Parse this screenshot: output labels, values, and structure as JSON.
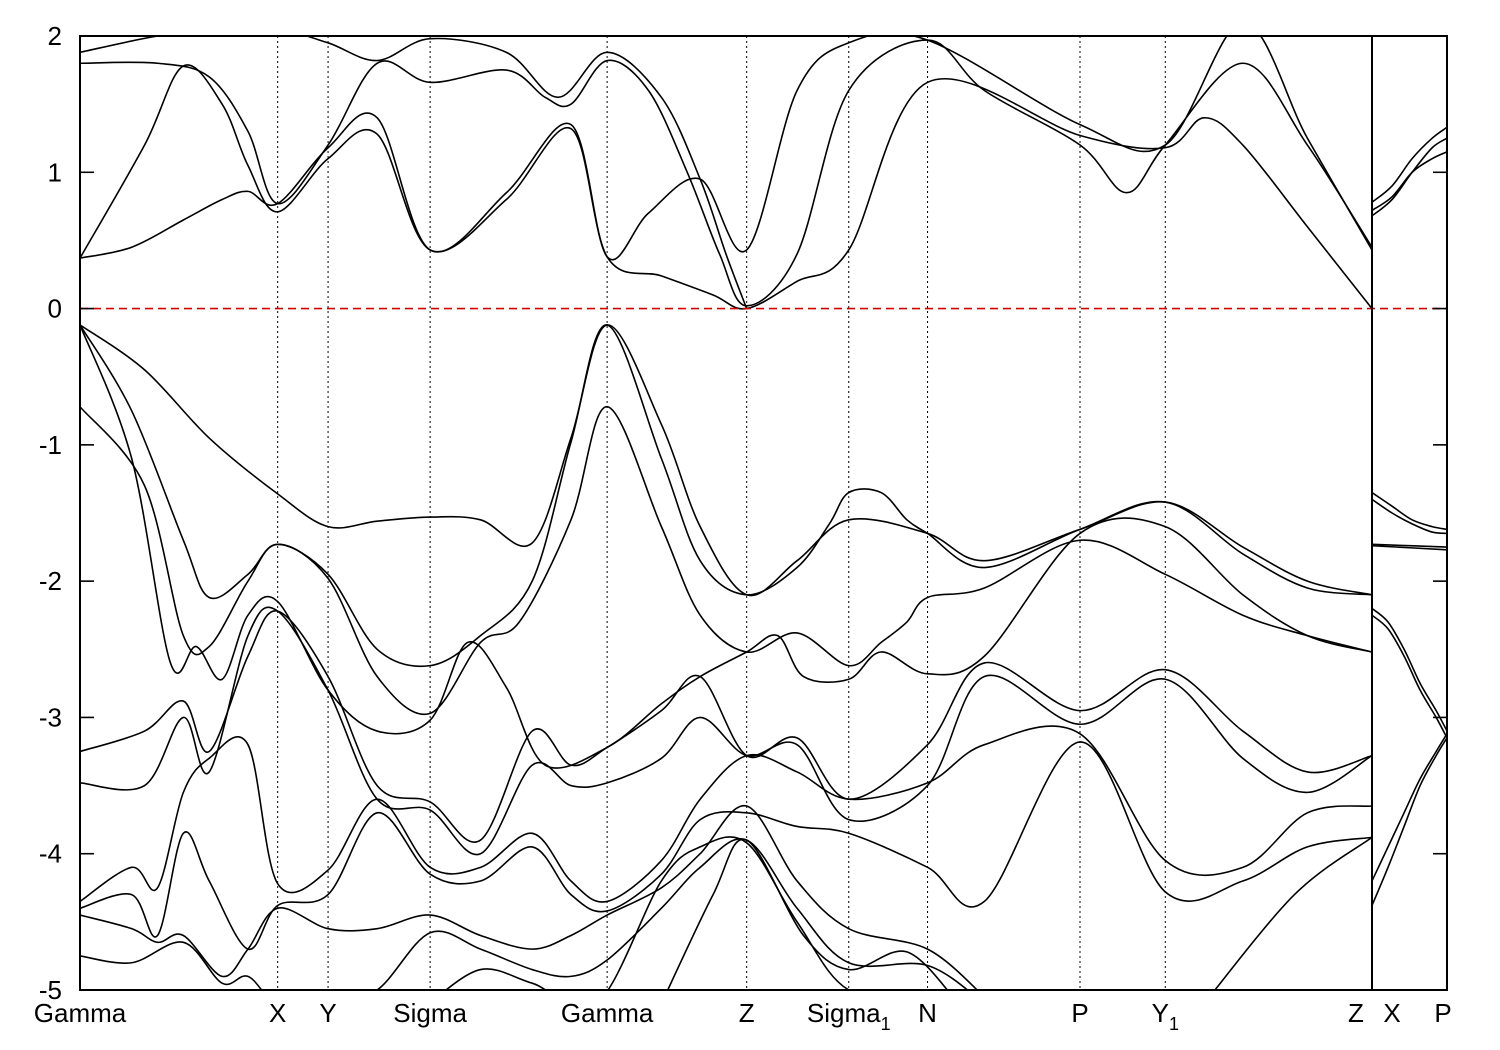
{
  "chart_data": {
    "type": "line",
    "title": "",
    "xlabel": "",
    "ylabel": "",
    "ylim": [
      -5,
      2
    ],
    "yticks": [
      2,
      1,
      0,
      -1,
      -2,
      -3,
      -4,
      -5
    ],
    "fermi_level": 0,
    "fermi_color": "#d40000",
    "line_color": "#000000",
    "grid": false,
    "legend": "none",
    "path_segments": [
      {
        "from": 0.0,
        "to": 1.0
      },
      {
        "from": 1.0,
        "to": 1.187
      }
    ],
    "kpoints": [
      {
        "label": "Gamma",
        "sub": "",
        "x": 0.0
      },
      {
        "label": "X",
        "sub": "",
        "x": 0.153
      },
      {
        "label": "Y",
        "sub": "",
        "x": 0.192
      },
      {
        "label": "Sigma",
        "sub": "",
        "x": 0.271
      },
      {
        "label": "Gamma",
        "sub": "",
        "x": 0.408
      },
      {
        "label": "Z",
        "sub": "",
        "x": 0.516
      },
      {
        "label": "Sigma",
        "sub": "1",
        "x": 0.595
      },
      {
        "label": "N",
        "sub": "",
        "x": 0.656
      },
      {
        "label": "P",
        "sub": "",
        "x": 0.774
      },
      {
        "label": "Y",
        "sub": "1",
        "x": 0.84
      },
      {
        "label": "Z",
        "sub": "",
        "x": 1.0
      },
      {
        "label": "X",
        "sub": "",
        "x": 1.0
      },
      {
        "label": "P",
        "sub": "",
        "x": 1.187
      }
    ],
    "kpoints_note_hidden": "",
    "series": [
      {
        "segment": 0,
        "x": [
          0.0,
          0.04,
          0.08,
          0.11,
          0.13,
          0.153,
          0.192,
          0.23,
          0.271,
          0.33,
          0.38,
          0.408,
          0.44,
          0.48,
          0.516,
          0.555,
          0.595,
          0.656,
          0.774,
          0.84,
          0.9,
          0.95,
          1.0
        ],
        "y": [
          0.37,
          0.45,
          0.65,
          0.8,
          0.86,
          0.77,
          1.18,
          1.4,
          0.43,
          0.85,
          1.35,
          0.38,
          0.7,
          0.95,
          0.43,
          1.6,
          1.95,
          1.97,
          1.35,
          1.2,
          2.1,
          1.25,
          0.43
        ]
      },
      {
        "segment": 0,
        "x": [
          0.0,
          0.05,
          0.08,
          0.11,
          0.13,
          0.153,
          0.192,
          0.23,
          0.271,
          0.33,
          0.38,
          0.408,
          0.45,
          0.49,
          0.516,
          0.555,
          0.595,
          0.656,
          0.774,
          0.84,
          0.87,
          0.9,
          0.95,
          1.0
        ],
        "y": [
          0.37,
          1.2,
          1.78,
          1.5,
          1.05,
          0.71,
          1.1,
          1.28,
          0.43,
          0.8,
          1.32,
          0.38,
          0.24,
          0.1,
          0.0,
          0.2,
          0.43,
          1.66,
          1.27,
          1.18,
          1.4,
          1.2,
          0.6,
          0.0
        ]
      },
      {
        "segment": 0,
        "x": [
          0.0,
          0.06,
          0.1,
          0.13,
          0.153,
          0.192,
          0.23,
          0.271,
          0.33,
          0.36,
          0.38,
          0.408,
          0.44,
          0.47,
          0.495,
          0.516,
          0.555,
          0.595,
          0.656,
          0.7,
          0.774,
          0.81,
          0.84,
          0.9,
          0.95,
          1.0
        ],
        "y": [
          1.8,
          1.8,
          1.7,
          1.3,
          0.77,
          1.2,
          1.8,
          1.66,
          1.75,
          1.55,
          1.5,
          1.82,
          1.6,
          1.0,
          0.4,
          0.02,
          0.4,
          1.6,
          1.97,
          1.6,
          1.2,
          0.85,
          1.2,
          1.8,
          1.2,
          0.45
        ]
      },
      {
        "segment": 0,
        "x": [
          0.0,
          0.06,
          0.11,
          0.153,
          0.192,
          0.23,
          0.271,
          0.33,
          0.37,
          0.408,
          0.45,
          0.48,
          0.5,
          0.516
        ],
        "y": [
          1.88,
          2.0,
          2.05,
          2.05,
          1.95,
          1.82,
          1.98,
          1.88,
          1.55,
          1.88,
          1.55,
          0.95,
          0.4,
          0.0
        ]
      },
      {
        "segment": 0,
        "x": [
          0.0,
          0.05,
          0.1,
          0.153,
          0.192,
          0.23,
          0.271,
          0.31,
          0.35,
          0.38,
          0.408,
          0.45,
          0.48,
          0.516,
          0.555,
          0.595,
          0.656,
          0.7,
          0.774,
          0.84,
          0.9,
          0.95,
          1.0
        ],
        "y": [
          -0.12,
          -0.45,
          -0.95,
          -1.36,
          -1.6,
          -1.56,
          -1.53,
          -1.55,
          -1.72,
          -0.95,
          -0.12,
          -0.85,
          -1.6,
          -2.1,
          -1.85,
          -1.55,
          -1.65,
          -1.85,
          -1.62,
          -1.42,
          -1.75,
          -2.0,
          -2.1
        ]
      },
      {
        "segment": 0,
        "x": [
          0.0,
          0.04,
          0.08,
          0.1,
          0.13,
          0.153,
          0.192,
          0.23,
          0.271,
          0.31,
          0.35,
          0.38,
          0.408,
          0.45,
          0.48,
          0.516,
          0.555,
          0.58,
          0.595,
          0.62,
          0.64,
          0.656,
          0.7,
          0.774,
          0.84,
          0.9,
          0.95,
          1.0
        ],
        "y": [
          -0.12,
          -0.75,
          -1.7,
          -2.12,
          -1.95,
          -1.73,
          -1.95,
          -2.5,
          -2.62,
          -2.4,
          -2.0,
          -0.98,
          -0.12,
          -1.1,
          -1.85,
          -2.1,
          -1.9,
          -1.58,
          -1.35,
          -1.35,
          -1.55,
          -1.65,
          -1.9,
          -1.62,
          -1.42,
          -1.8,
          -2.05,
          -2.1
        ]
      },
      {
        "segment": 0,
        "x": [
          0.0,
          0.05,
          0.08,
          0.1,
          0.13,
          0.153,
          0.192,
          0.23,
          0.271,
          0.31,
          0.34,
          0.38,
          0.408,
          0.45,
          0.48,
          0.516,
          0.555,
          0.595,
          0.62,
          0.64,
          0.656,
          0.7,
          0.774,
          0.84,
          0.9,
          0.95,
          1.0
        ],
        "y": [
          -0.72,
          -1.3,
          -2.4,
          -2.48,
          -2.0,
          -1.73,
          -1.98,
          -2.7,
          -2.97,
          -2.45,
          -2.3,
          -1.55,
          -0.72,
          -1.6,
          -2.25,
          -2.52,
          -2.38,
          -2.62,
          -2.45,
          -2.3,
          -2.12,
          -2.05,
          -1.7,
          -1.95,
          -2.25,
          -2.4,
          -2.52
        ]
      },
      {
        "segment": 0,
        "x": [
          0.0,
          0.04,
          0.07,
          0.09,
          0.11,
          0.13,
          0.153,
          0.192,
          0.23,
          0.271,
          0.3,
          0.33,
          0.36,
          0.408,
          0.45,
          0.48,
          0.516,
          0.54,
          0.56,
          0.595,
          0.62,
          0.656,
          0.7,
          0.774,
          0.84,
          0.9,
          0.95,
          1.0
        ],
        "y": [
          -0.12,
          -1.1,
          -2.6,
          -2.48,
          -2.72,
          -2.25,
          -2.15,
          -2.8,
          -3.1,
          -3.02,
          -2.45,
          -2.78,
          -3.35,
          -3.22,
          -2.9,
          -2.7,
          -2.52,
          -2.4,
          -2.7,
          -2.72,
          -2.52,
          -2.68,
          -2.55,
          -1.65,
          -1.6,
          -2.1,
          -2.4,
          -2.52
        ]
      },
      {
        "segment": 0,
        "x": [
          0.0,
          0.05,
          0.08,
          0.1,
          0.13,
          0.153,
          0.192,
          0.23,
          0.271,
          0.31,
          0.35,
          0.38,
          0.408,
          0.45,
          0.48,
          0.516,
          0.555,
          0.595,
          0.656,
          0.7,
          0.774,
          0.84,
          0.9,
          0.95,
          1.0
        ],
        "y": [
          -3.25,
          -3.1,
          -2.88,
          -3.25,
          -2.55,
          -2.22,
          -2.7,
          -3.5,
          -3.62,
          -3.9,
          -3.1,
          -3.35,
          -3.22,
          -2.95,
          -2.7,
          -3.28,
          -3.15,
          -3.6,
          -3.2,
          -2.6,
          -2.95,
          -2.65,
          -3.1,
          -3.4,
          -3.28
        ]
      },
      {
        "segment": 0,
        "x": [
          0.0,
          0.05,
          0.08,
          0.1,
          0.13,
          0.153,
          0.192,
          0.23,
          0.271,
          0.31,
          0.35,
          0.38,
          0.408,
          0.45,
          0.48,
          0.516,
          0.555,
          0.595,
          0.656,
          0.7,
          0.774,
          0.84,
          0.9,
          0.95,
          1.0
        ],
        "y": [
          -3.48,
          -3.5,
          -3.0,
          -3.4,
          -2.4,
          -2.22,
          -2.8,
          -3.6,
          -3.68,
          -4.0,
          -3.35,
          -3.5,
          -3.48,
          -3.3,
          -3.0,
          -3.28,
          -3.2,
          -3.75,
          -3.5,
          -2.7,
          -3.05,
          -2.72,
          -3.3,
          -3.55,
          -3.28
        ]
      },
      {
        "segment": 0,
        "x": [
          0.0,
          0.04,
          0.06,
          0.08,
          0.1,
          0.13,
          0.153,
          0.192,
          0.23,
          0.271,
          0.31,
          0.35,
          0.38,
          0.408,
          0.45,
          0.48,
          0.516,
          0.555,
          0.595,
          0.656,
          0.7,
          0.774,
          0.84,
          0.9,
          0.95,
          1.0
        ],
        "y": [
          -4.35,
          -4.1,
          -4.25,
          -3.55,
          -3.3,
          -3.2,
          -4.22,
          -4.12,
          -3.6,
          -4.1,
          -4.1,
          -3.85,
          -4.2,
          -4.35,
          -4.05,
          -3.6,
          -3.28,
          -3.4,
          -3.6,
          -3.48,
          -3.2,
          -3.12,
          -4.05,
          -4.1,
          -3.7,
          -3.65
        ]
      },
      {
        "segment": 0,
        "x": [
          0.0,
          0.04,
          0.06,
          0.08,
          0.1,
          0.13,
          0.153,
          0.192,
          0.23,
          0.271,
          0.31,
          0.35,
          0.38,
          0.408,
          0.45,
          0.48,
          0.516,
          0.555,
          0.595,
          0.656,
          0.7,
          0.774,
          0.84,
          0.9,
          0.95,
          1.0
        ],
        "y": [
          -4.4,
          -4.3,
          -4.6,
          -3.85,
          -4.2,
          -4.7,
          -4.38,
          -4.3,
          -3.7,
          -4.15,
          -4.2,
          -3.95,
          -4.3,
          -4.42,
          -4.15,
          -3.75,
          -3.7,
          -3.8,
          -3.85,
          -4.1,
          -4.35,
          -3.18,
          -4.28,
          -4.2,
          -3.95,
          -3.88
        ]
      },
      {
        "segment": 0,
        "x": [
          0.0,
          0.04,
          0.06,
          0.08,
          0.11,
          0.13,
          0.153,
          0.192,
          0.23,
          0.271,
          0.31,
          0.35,
          0.38,
          0.408,
          0.45,
          0.48,
          0.516,
          0.555,
          0.595,
          0.656,
          0.7
        ],
        "y": [
          -4.45,
          -4.55,
          -4.65,
          -4.6,
          -4.9,
          -4.7,
          -4.4,
          -4.55,
          -4.55,
          -4.45,
          -4.6,
          -4.7,
          -4.6,
          -4.45,
          -4.25,
          -4.0,
          -3.65,
          -4.2,
          -4.55,
          -4.7,
          -5.05
        ]
      },
      {
        "segment": 0,
        "x": [
          0.0,
          0.04,
          0.08,
          0.11,
          0.13,
          0.153,
          0.192,
          0.23,
          0.271,
          0.31,
          0.35,
          0.38,
          0.408,
          0.45,
          0.48,
          0.516,
          0.555,
          0.595,
          0.656,
          0.7
        ],
        "y": [
          -4.75,
          -4.8,
          -4.65,
          -4.95,
          -4.9,
          -5.1,
          -5.1,
          -5.0,
          -4.58,
          -4.7,
          -4.85,
          -4.9,
          -4.78,
          -4.4,
          -4.1,
          -3.9,
          -4.4,
          -4.8,
          -4.82,
          -5.1
        ]
      },
      {
        "segment": 0,
        "x": [
          0.27,
          0.31,
          0.35,
          0.4,
          0.45,
          0.48,
          0.516,
          0.555,
          0.595,
          0.656
        ],
        "y": [
          -5.1,
          -4.85,
          -4.95,
          -5.1,
          -4.2,
          -3.95,
          -3.92,
          -4.5,
          -5.0,
          -5.05
        ]
      },
      {
        "segment": 0,
        "x": [
          0.45,
          0.49,
          0.516,
          0.56,
          0.595,
          0.64,
          0.68
        ],
        "y": [
          -5.1,
          -4.3,
          -3.9,
          -4.6,
          -4.85,
          -4.72,
          -5.1
        ]
      },
      {
        "segment": 0,
        "x": [
          0.87,
          0.94,
          1.0
        ],
        "y": [
          -5.1,
          -4.3,
          -3.88
        ]
      },
      {
        "segment": 1,
        "x": [
          1.0,
          1.05,
          1.1,
          1.15,
          1.187
        ],
        "y": [
          0.68,
          0.8,
          1.0,
          1.18,
          1.25
        ]
      },
      {
        "segment": 1,
        "x": [
          1.0,
          1.05,
          1.1,
          1.15,
          1.187
        ],
        "y": [
          0.78,
          0.9,
          1.1,
          1.25,
          1.33
        ]
      },
      {
        "segment": 1,
        "x": [
          1.0,
          1.05,
          1.1,
          1.15,
          1.187
        ],
        "y": [
          0.72,
          0.82,
          1.0,
          1.1,
          1.15
        ]
      },
      {
        "segment": 1,
        "x": [
          1.0,
          1.05,
          1.1,
          1.15,
          1.187
        ],
        "y": [
          -1.35,
          -1.45,
          -1.55,
          -1.6,
          -1.62
        ]
      },
      {
        "segment": 1,
        "x": [
          1.0,
          1.05,
          1.1,
          1.15,
          1.187
        ],
        "y": [
          -1.4,
          -1.5,
          -1.58,
          -1.64,
          -1.65
        ]
      },
      {
        "segment": 1,
        "x": [
          1.0,
          1.187
        ],
        "y": [
          -1.73,
          -1.75
        ]
      },
      {
        "segment": 1,
        "x": [
          1.0,
          1.187
        ],
        "y": [
          -1.74,
          -1.77
        ]
      },
      {
        "segment": 1,
        "x": [
          1.0,
          1.04,
          1.08,
          1.12,
          1.16,
          1.187
        ],
        "y": [
          -2.2,
          -2.3,
          -2.5,
          -2.75,
          -2.95,
          -3.1
        ]
      },
      {
        "segment": 1,
        "x": [
          1.0,
          1.04,
          1.08,
          1.12,
          1.16,
          1.187
        ],
        "y": [
          -2.25,
          -2.35,
          -2.55,
          -2.8,
          -3.0,
          -3.15
        ]
      },
      {
        "segment": 1,
        "x": [
          1.0,
          1.04,
          1.08,
          1.12,
          1.16,
          1.187
        ],
        "y": [
          -4.2,
          -3.95,
          -3.7,
          -3.45,
          -3.25,
          -3.12
        ]
      },
      {
        "segment": 1,
        "x": [
          1.0,
          1.04,
          1.08,
          1.12,
          1.16,
          1.187
        ],
        "y": [
          -4.38,
          -4.1,
          -3.8,
          -3.5,
          -3.28,
          -3.15
        ]
      }
    ]
  }
}
